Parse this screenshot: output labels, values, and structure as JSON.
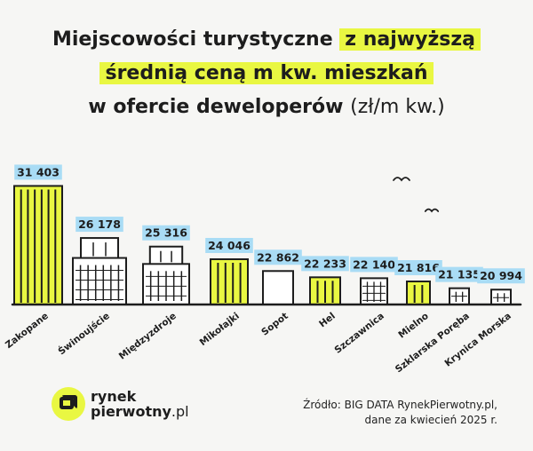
{
  "title": {
    "line1_plain": "Miejscowości turystyczne ",
    "line1_highlight": "z najwyższą",
    "line2_highlight": "średnią ceną m kw. mieszkań",
    "line3_bold": "w ofercie deweloperów ",
    "line3_unit": "(zł/m kw.)"
  },
  "colors": {
    "highlight": "#e9f742",
    "label_bg": "#a9dcf5",
    "ink": "#1d1d1d",
    "background": "#f6f6f4"
  },
  "chart_data": {
    "type": "bar",
    "categories": [
      "Zakopane",
      "Świnoujście",
      "Międzyzdroje",
      "Mikołajki",
      "Sopot",
      "Hel",
      "Szczawnica",
      "Mielno",
      "Szklarska Poręba",
      "Krynica Morska"
    ],
    "values": [
      31403,
      26178,
      25316,
      24046,
      22862,
      22233,
      22140,
      21816,
      21135,
      20994
    ],
    "value_labels": [
      "31 403",
      "26 178",
      "25 316",
      "24 046",
      "22 862",
      "22 233",
      "22 140",
      "21 816",
      "21 135",
      "20 994"
    ],
    "bar_style": [
      "yellow",
      "white-windows",
      "white-windows",
      "yellow",
      "white-plain",
      "yellow",
      "white-windows",
      "yellow",
      "white-windows",
      "white-windows"
    ],
    "title": "Miejscowości turystyczne z najwyższą średnią ceną m kw. mieszkań w ofercie deweloperów (zł/m kw.)",
    "xlabel": "",
    "ylabel": ""
  },
  "logo": {
    "line1": "rynek",
    "line2": "pierwotny",
    "suffix": ".pl"
  },
  "source": {
    "line1": "Źródło: BIG DATA RynekPierwotny.pl,",
    "line2": "dane za kwiecień 2025 r."
  }
}
